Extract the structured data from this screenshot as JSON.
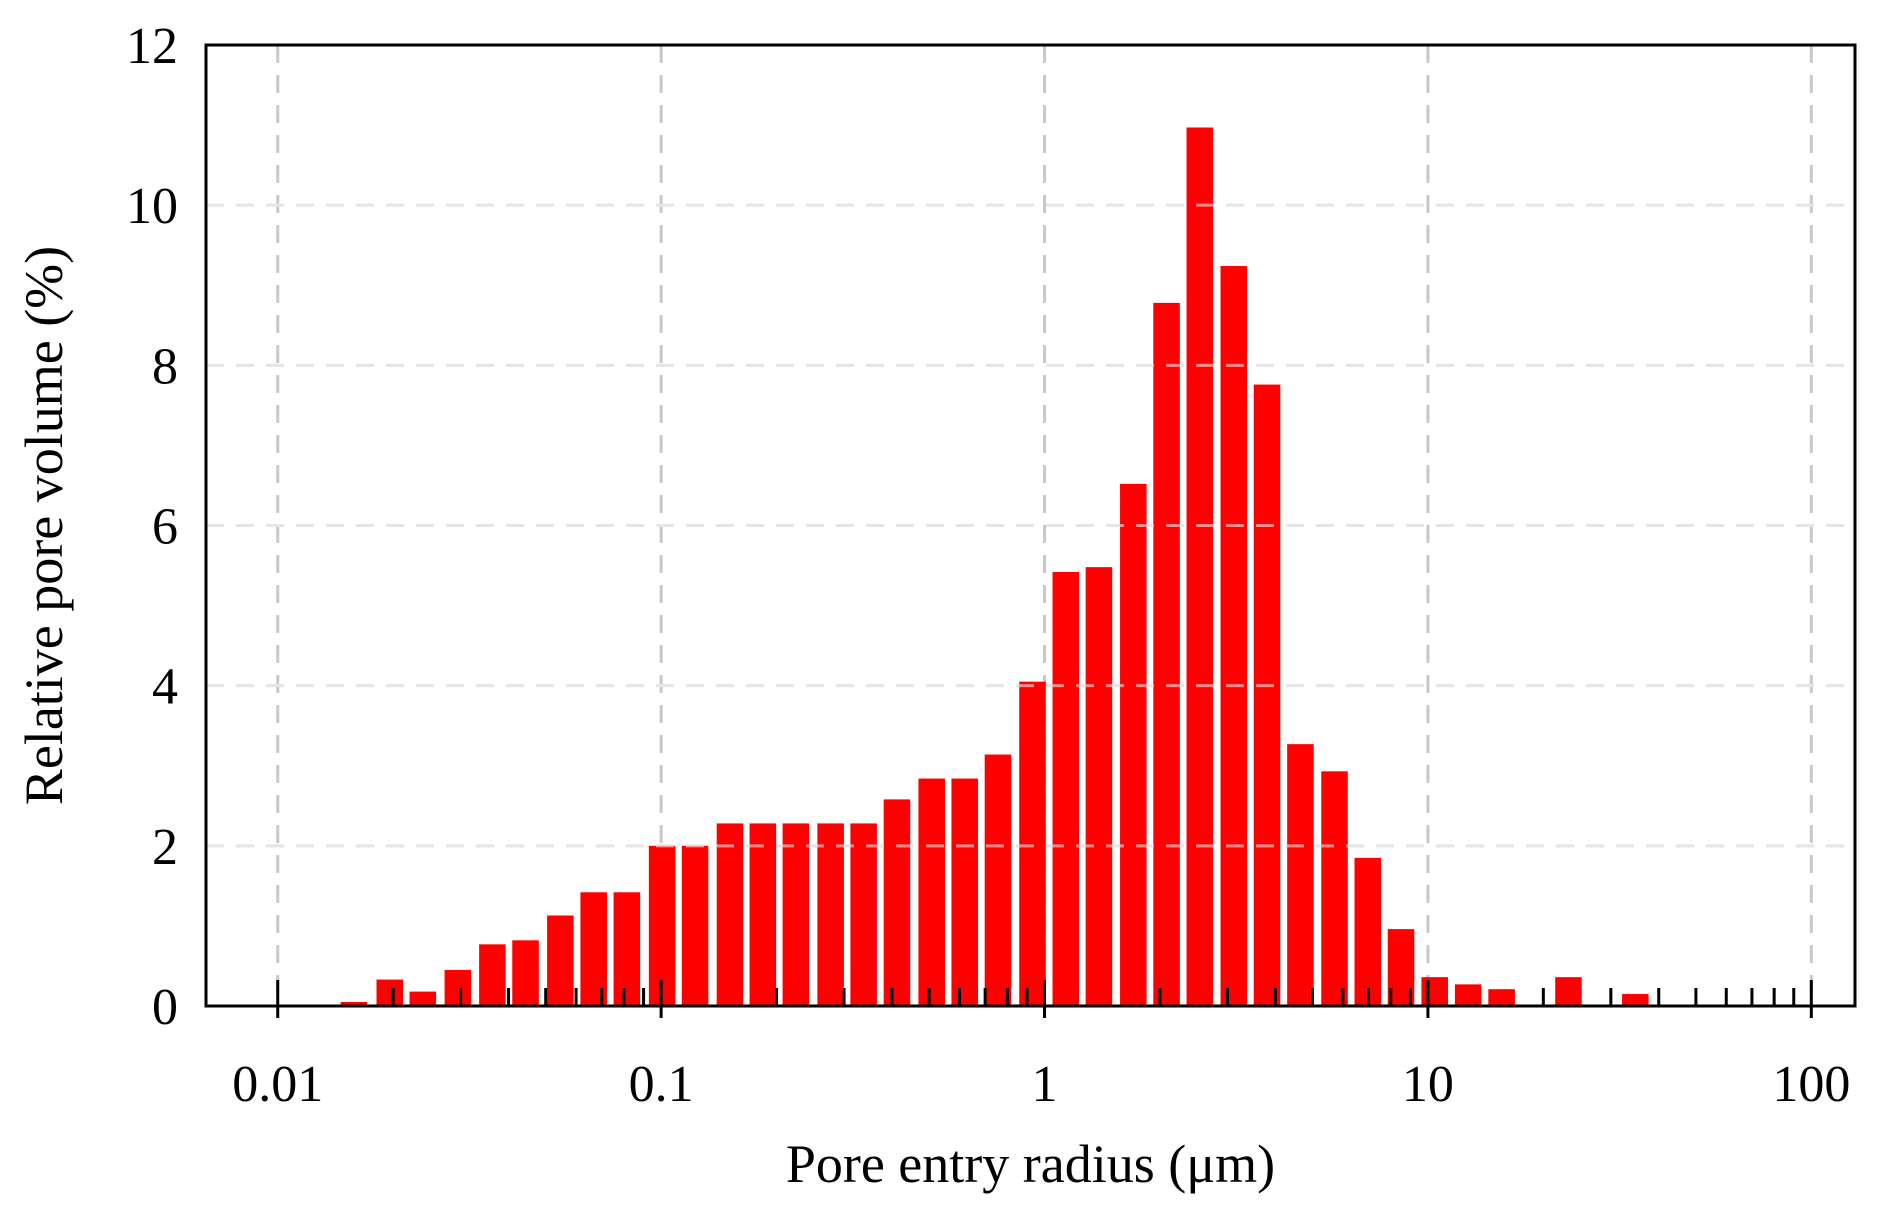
{
  "chart_data": {
    "type": "bar",
    "title": "",
    "xlabel": "Pore entry radius (μm)",
    "ylabel": "Relative pore volume (%)",
    "x_scale": "log",
    "xlim": [
      0.0065,
      130
    ],
    "ylim": [
      0,
      12
    ],
    "grid": true,
    "legend": false,
    "bar_color": "#ff0000",
    "grid_color": "#c8c8c8",
    "x_ticks": [
      {
        "value": 0.01,
        "label": "0.01"
      },
      {
        "value": 0.1,
        "label": "0.1"
      },
      {
        "value": 1,
        "label": "1"
      },
      {
        "value": 10,
        "label": "10"
      },
      {
        "value": 100,
        "label": "100"
      }
    ],
    "y_ticks": [
      {
        "value": 0,
        "label": "0"
      },
      {
        "value": 2,
        "label": "2"
      },
      {
        "value": 4,
        "label": "4"
      },
      {
        "value": 6,
        "label": "6"
      },
      {
        "value": 8,
        "label": "8"
      },
      {
        "value": 10,
        "label": "10"
      },
      {
        "value": 12,
        "label": "12"
      }
    ],
    "bars": [
      {
        "x": 0.0158,
        "y": 0.05
      },
      {
        "x": 0.0196,
        "y": 0.33
      },
      {
        "x": 0.0239,
        "y": 0.18
      },
      {
        "x": 0.0295,
        "y": 0.45
      },
      {
        "x": 0.0363,
        "y": 0.77
      },
      {
        "x": 0.0443,
        "y": 0.82
      },
      {
        "x": 0.0546,
        "y": 1.13
      },
      {
        "x": 0.0667,
        "y": 1.42
      },
      {
        "x": 0.0814,
        "y": 1.42
      },
      {
        "x": 0.1006,
        "y": 2.0
      },
      {
        "x": 0.1226,
        "y": 2.0
      },
      {
        "x": 0.1512,
        "y": 2.28
      },
      {
        "x": 0.1842,
        "y": 2.28
      },
      {
        "x": 0.2246,
        "y": 2.28
      },
      {
        "x": 0.2768,
        "y": 2.28
      },
      {
        "x": 0.3375,
        "y": 2.28
      },
      {
        "x": 0.4122,
        "y": 2.58
      },
      {
        "x": 0.5079,
        "y": 2.84
      },
      {
        "x": 0.6192,
        "y": 2.84
      },
      {
        "x": 0.7561,
        "y": 3.14
      },
      {
        "x": 0.9303,
        "y": 4.05
      },
      {
        "x": 1.1361,
        "y": 5.42
      },
      {
        "x": 1.3866,
        "y": 5.48
      },
      {
        "x": 1.7045,
        "y": 6.52
      },
      {
        "x": 2.0813,
        "y": 8.78
      },
      {
        "x": 2.5412,
        "y": 10.97
      },
      {
        "x": 3.1165,
        "y": 9.24
      },
      {
        "x": 3.8048,
        "y": 7.76
      },
      {
        "x": 4.6504,
        "y": 3.27
      },
      {
        "x": 5.7074,
        "y": 2.93
      },
      {
        "x": 6.9689,
        "y": 1.85
      },
      {
        "x": 8.5085,
        "y": 0.96
      },
      {
        "x": 10.4158,
        "y": 0.36
      },
      {
        "x": 12.7353,
        "y": 0.27
      },
      {
        "x": 15.5676,
        "y": 0.21
      },
      {
        "x": 23.2594,
        "y": 0.36
      },
      {
        "x": 34.7519,
        "y": 0.15
      }
    ]
  }
}
